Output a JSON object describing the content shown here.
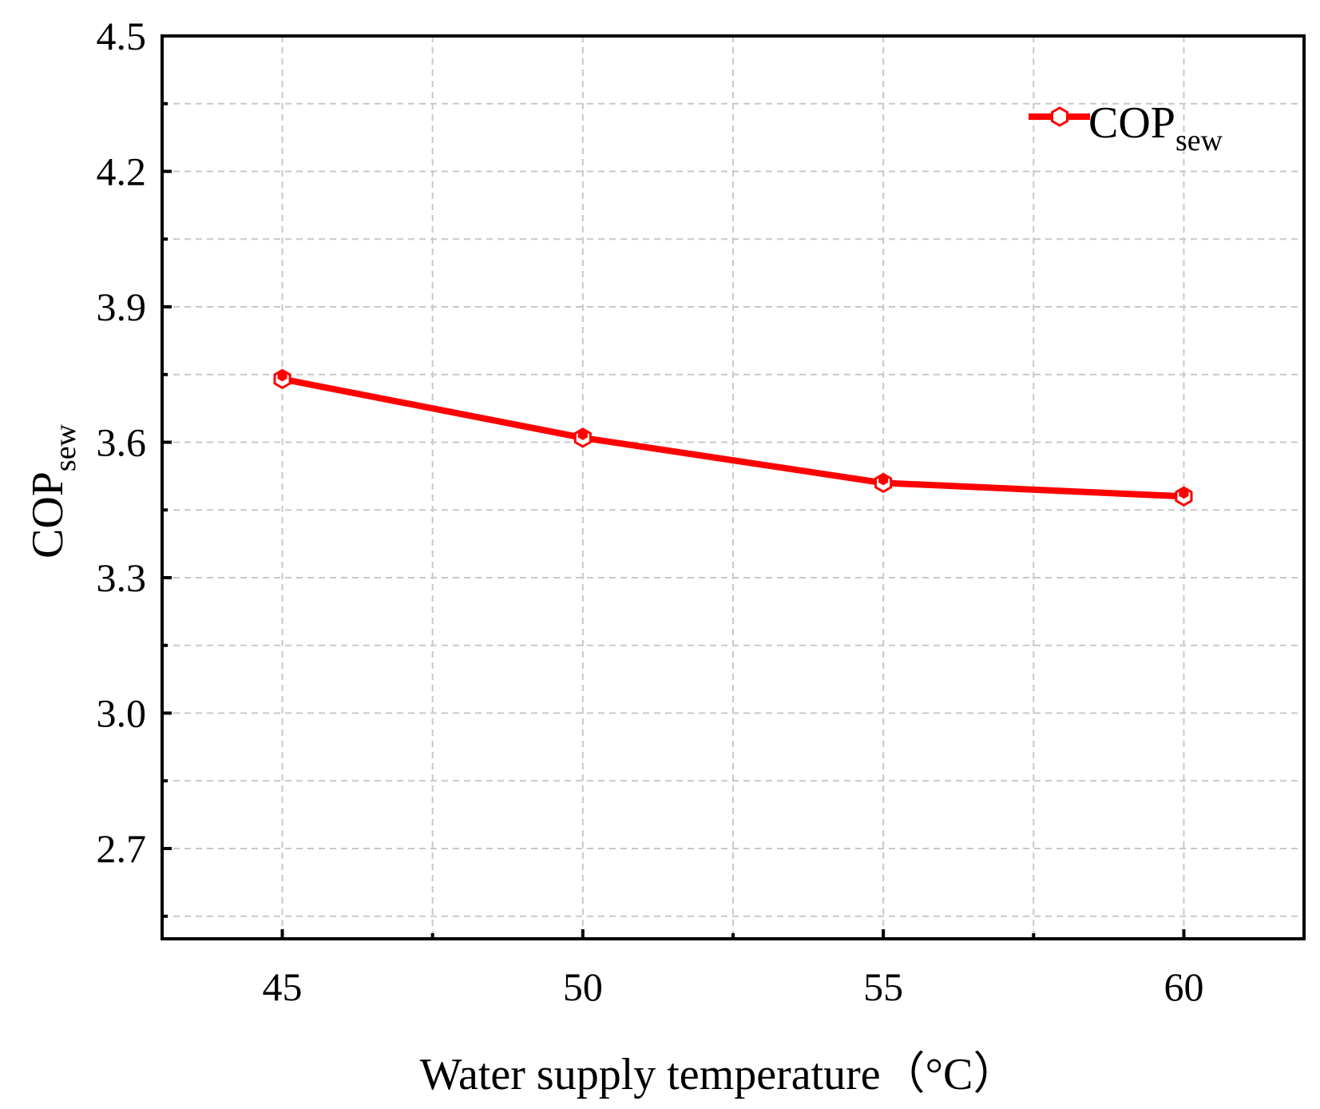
{
  "chart_data": {
    "type": "line",
    "title": "",
    "xlabel": "Water supply temperature（°C）",
    "ylabel": "COP",
    "ylabel_subscript": "sew",
    "x": [
      45,
      50,
      55,
      60
    ],
    "x_ticks": [
      "45",
      "50",
      "55",
      "60"
    ],
    "xlim": [
      43,
      62
    ],
    "y_ticks": [
      "2.7",
      "3.0",
      "3.3",
      "3.6",
      "3.9",
      "4.2",
      "4.5"
    ],
    "y_tick_values": [
      2.7,
      3.0,
      3.3,
      3.6,
      3.9,
      4.2,
      4.5
    ],
    "ylim": [
      2.5,
      4.5
    ],
    "grid": true,
    "legend_position": "top-right",
    "series": [
      {
        "name": "COP",
        "name_subscript": "sew",
        "color": "#ff0000",
        "marker": "hexagon",
        "values": [
          3.74,
          3.61,
          3.51,
          3.48
        ]
      }
    ]
  },
  "colors": {
    "grid": "#c8c8c8",
    "axis": "#000000",
    "series": "#ff0000",
    "background": "#ffffff"
  }
}
